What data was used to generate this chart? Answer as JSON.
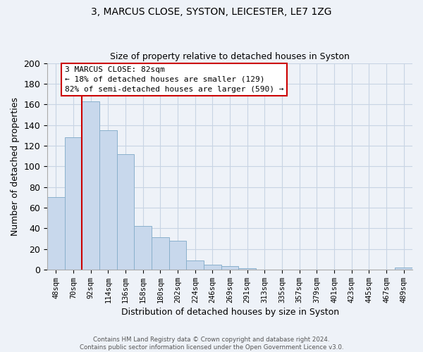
{
  "title": "3, MARCUS CLOSE, SYSTON, LEICESTER, LE7 1ZG",
  "subtitle": "Size of property relative to detached houses in Syston",
  "xlabel": "Distribution of detached houses by size in Syston",
  "ylabel": "Number of detached properties",
  "bar_labels": [
    "48sqm",
    "70sqm",
    "92sqm",
    "114sqm",
    "136sqm",
    "158sqm",
    "180sqm",
    "202sqm",
    "224sqm",
    "246sqm",
    "269sqm",
    "291sqm",
    "313sqm",
    "335sqm",
    "357sqm",
    "379sqm",
    "401sqm",
    "423sqm",
    "445sqm",
    "467sqm",
    "489sqm"
  ],
  "bar_values": [
    70,
    128,
    163,
    135,
    112,
    42,
    31,
    28,
    9,
    5,
    3,
    1,
    0,
    0,
    0,
    0,
    0,
    0,
    0,
    0,
    2
  ],
  "bar_color": "#c8d8ec",
  "bar_edge_color": "#8ab0cc",
  "vline_color": "#cc0000",
  "ylim": [
    0,
    200
  ],
  "yticks": [
    0,
    20,
    40,
    60,
    80,
    100,
    120,
    140,
    160,
    180,
    200
  ],
  "annotation_line0": "3 MARCUS CLOSE: 82sqm",
  "annotation_line1": "← 18% of detached houses are smaller (129)",
  "annotation_line2": "82% of semi-detached houses are larger (590) →",
  "annotation_box_color": "#ffffff",
  "annotation_box_edge": "#cc0000",
  "footer_line1": "Contains HM Land Registry data © Crown copyright and database right 2024.",
  "footer_line2": "Contains public sector information licensed under the Open Government Licence v3.0.",
  "grid_color": "#c8d4e4",
  "background_color": "#eef2f8"
}
